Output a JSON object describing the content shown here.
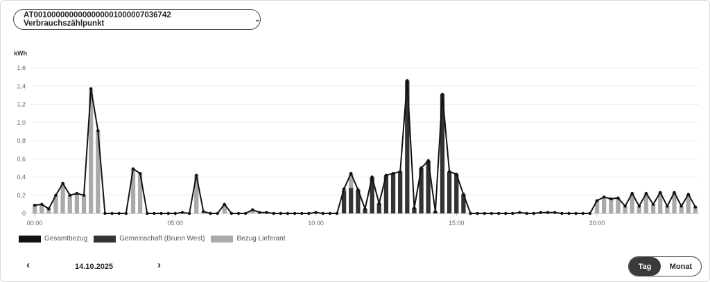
{
  "meter": {
    "label": "AT0010000000000000001000007036742 Verbrauchszählpunkt",
    "chevron": "⌄"
  },
  "unit": "kWh",
  "legend": [
    {
      "name": "Gesamtbezug",
      "color": "#111111"
    },
    {
      "name": "Gemeinschaft (Brunn West)",
      "color": "#333333"
    },
    {
      "name": "Bezug Lieferant",
      "color": "#aaaaaa"
    }
  ],
  "navigation": {
    "prev_icon": "‹",
    "next_icon": "›",
    "date": "14.10.2025"
  },
  "view_toggle": {
    "day": "Tag",
    "month": "Monat",
    "active": "Tag"
  },
  "chart_data": {
    "type": "bar",
    "title": "",
    "ylabel": "kWh",
    "ylim": [
      0,
      1.6
    ],
    "yticks": [
      "0",
      "0,2",
      "0,4",
      "0,6",
      "0,8",
      "1,0",
      "1,2",
      "1,4",
      "1,6"
    ],
    "xticks": [
      "00:00",
      "05:00",
      "10:00",
      "15:00",
      "20:00"
    ],
    "grid": true,
    "legend_position": "bottom-left",
    "interval_minutes": 15,
    "series": [
      {
        "name": "Gesamtbezug",
        "color": "#111111",
        "kind": "line",
        "values": [
          0.09,
          0.1,
          0.05,
          0.2,
          0.33,
          0.2,
          0.22,
          0.2,
          1.37,
          0.91,
          0,
          0,
          0,
          0,
          0.49,
          0.44,
          0,
          0,
          0,
          0,
          0,
          0.01,
          0,
          0.42,
          0.02,
          0,
          0,
          0.1,
          0,
          0,
          0,
          0.04,
          0.01,
          0.01,
          0,
          0,
          0,
          0,
          0,
          0,
          0.01,
          0,
          0,
          0,
          0.27,
          0.44,
          0.26,
          0.05,
          0.4,
          0.11,
          0.42,
          0.44,
          0.46,
          1.46,
          0.06,
          0.5,
          0.58,
          0.02,
          1.31,
          0.46,
          0.43,
          0.21,
          0,
          0,
          0,
          0,
          0,
          0,
          0,
          0.01,
          0,
          0,
          0.01,
          0.01,
          0.01,
          0,
          0,
          0,
          0,
          0,
          0.14,
          0.18,
          0.16,
          0.17,
          0.08,
          0.22,
          0.08,
          0.22,
          0.1,
          0.23,
          0.08,
          0.23,
          0.08,
          0.21,
          0.07
        ]
      },
      {
        "name": "Gemeinschaft (Brunn West)",
        "color": "#333333",
        "kind": "bar",
        "values": [
          0,
          0,
          0,
          0,
          0,
          0,
          0,
          0,
          0,
          0,
          0,
          0,
          0,
          0,
          0,
          0,
          0,
          0,
          0,
          0,
          0,
          0,
          0,
          0,
          0,
          0,
          0,
          0,
          0,
          0,
          0,
          0,
          0,
          0,
          0,
          0,
          0,
          0,
          0,
          0,
          0,
          0,
          0,
          0,
          0.25,
          0.28,
          0.26,
          0.05,
          0.4,
          0.11,
          0.42,
          0.44,
          0.46,
          1.46,
          0.06,
          0.5,
          0.58,
          0.02,
          1.31,
          0.46,
          0.43,
          0.21,
          0,
          0,
          0,
          0,
          0,
          0,
          0,
          0,
          0,
          0,
          0,
          0,
          0,
          0,
          0,
          0,
          0,
          0,
          0,
          0,
          0,
          0,
          0,
          0,
          0,
          0,
          0,
          0,
          0,
          0,
          0,
          0,
          0
        ]
      },
      {
        "name": "Bezug Lieferant",
        "color": "#aaaaaa",
        "kind": "bar",
        "values": [
          0.09,
          0.1,
          0.05,
          0.2,
          0.33,
          0.2,
          0.22,
          0.2,
          1.37,
          0.91,
          0,
          0,
          0,
          0,
          0.49,
          0.44,
          0,
          0,
          0,
          0,
          0,
          0.01,
          0,
          0.42,
          0.02,
          0,
          0,
          0.1,
          0,
          0,
          0,
          0.04,
          0.01,
          0.01,
          0,
          0,
          0,
          0,
          0,
          0,
          0.01,
          0,
          0,
          0,
          0.02,
          0.16,
          0,
          0,
          0,
          0,
          0,
          0,
          0,
          0,
          0,
          0,
          0,
          0,
          0,
          0,
          0,
          0,
          0,
          0,
          0,
          0,
          0,
          0,
          0,
          0.01,
          0,
          0,
          0.01,
          0.01,
          0.01,
          0,
          0,
          0,
          0,
          0,
          0.14,
          0.18,
          0.16,
          0.17,
          0.08,
          0.22,
          0.08,
          0.22,
          0.1,
          0.23,
          0.08,
          0.23,
          0.08,
          0.21,
          0.07
        ]
      }
    ]
  }
}
